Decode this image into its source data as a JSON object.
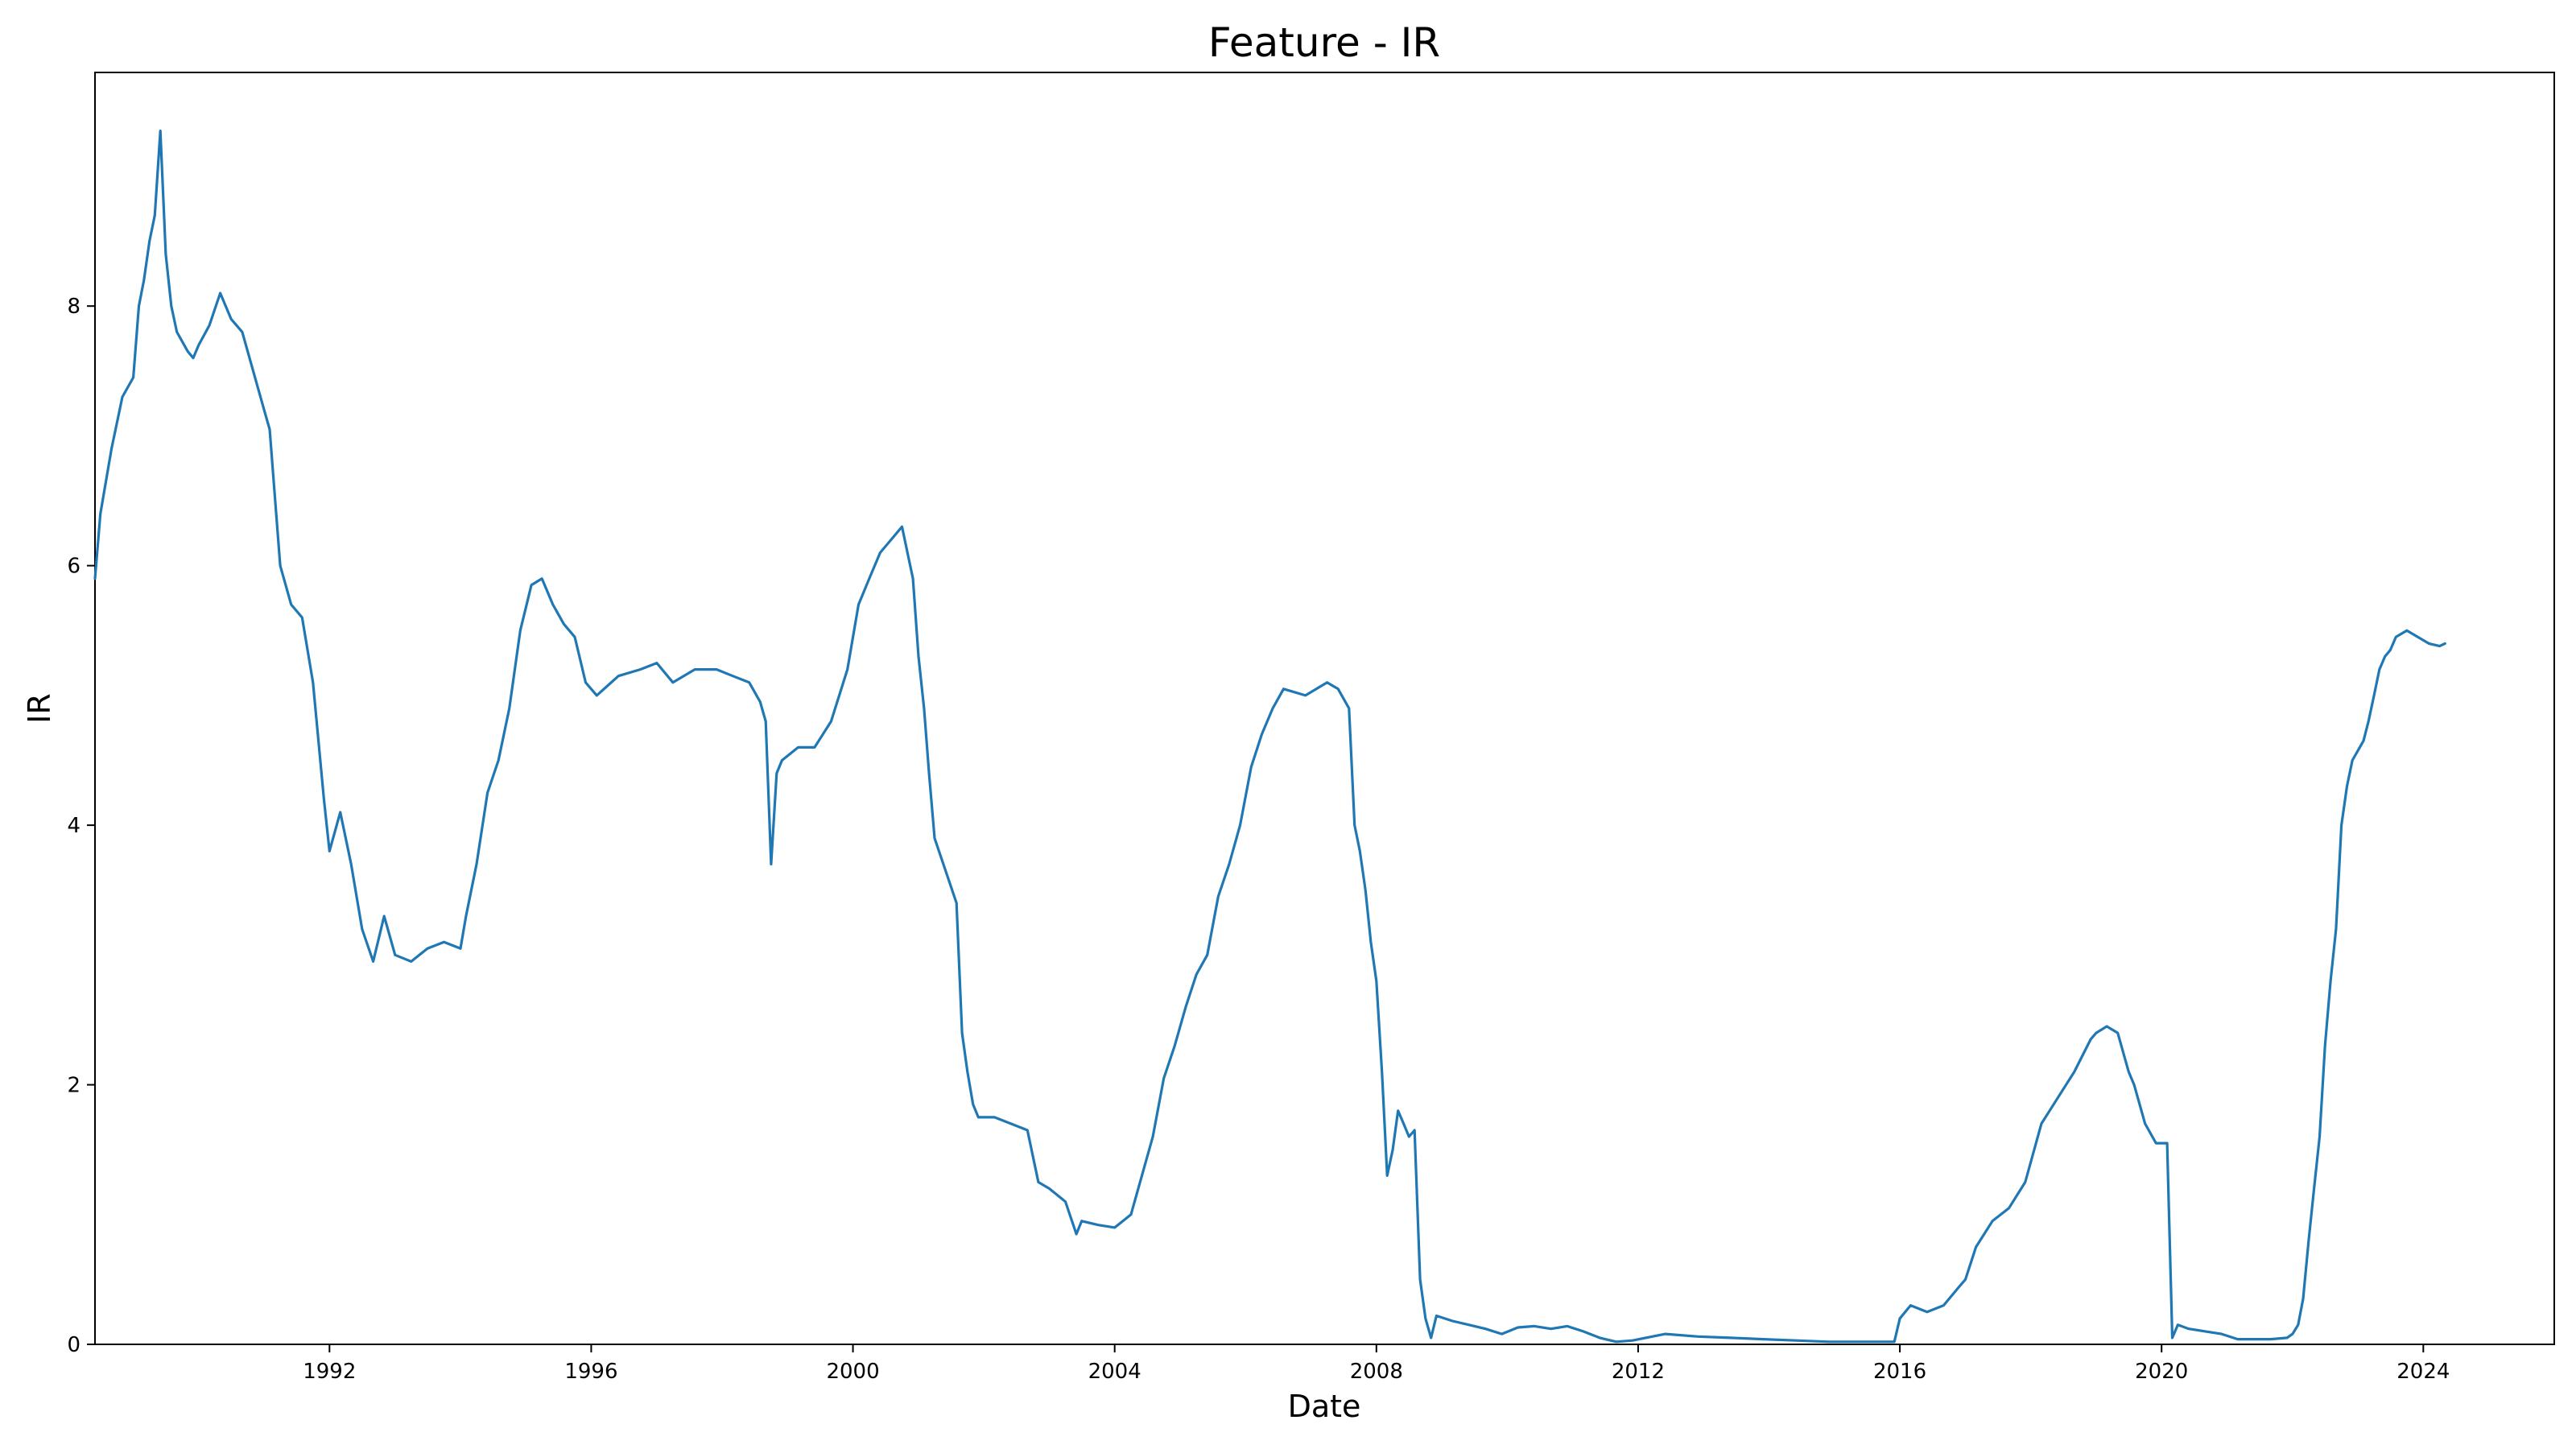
{
  "chart_data": {
    "type": "line",
    "title": "Feature - IR",
    "xlabel": "Date",
    "ylabel": "IR",
    "grid": false,
    "line_color": "#1f77b4",
    "xlim": [
      "1988-06-01",
      "2026-01-01"
    ],
    "ylim": [
      0,
      9.8
    ],
    "x_ticks": [
      {
        "date": "1992-01-01",
        "label": "1992"
      },
      {
        "date": "1996-01-01",
        "label": "1996"
      },
      {
        "date": "2000-01-01",
        "label": "2000"
      },
      {
        "date": "2004-01-01",
        "label": "2004"
      },
      {
        "date": "2008-01-01",
        "label": "2008"
      },
      {
        "date": "2012-01-01",
        "label": "2012"
      },
      {
        "date": "2016-01-01",
        "label": "2016"
      },
      {
        "date": "2020-01-01",
        "label": "2020"
      },
      {
        "date": "2024-01-01",
        "label": "2024"
      }
    ],
    "y_ticks": [
      {
        "value": 0,
        "label": "0"
      },
      {
        "value": 2,
        "label": "2"
      },
      {
        "value": 4,
        "label": "4"
      },
      {
        "value": 6,
        "label": "6"
      },
      {
        "value": 8,
        "label": "8"
      }
    ],
    "series": [
      {
        "x": [
          "1988-06-01",
          "1988-07-01",
          "1988-09-01",
          "1988-11-01",
          "1989-01-01",
          "1989-02-01",
          "1989-03-01",
          "1989-04-01",
          "1989-05-01",
          "1989-06-01",
          "1989-07-01",
          "1989-08-01",
          "1989-09-01",
          "1989-11-01",
          "1989-12-01",
          "1990-01-01",
          "1990-03-01",
          "1990-05-01",
          "1990-07-01",
          "1990-09-01",
          "1990-11-01",
          "1991-01-01",
          "1991-02-01",
          "1991-04-01",
          "1991-06-01",
          "1991-08-01",
          "1991-10-01",
          "1991-12-01",
          "1992-01-01",
          "1992-03-01",
          "1992-05-01",
          "1992-07-01",
          "1992-09-01",
          "1992-11-01",
          "1993-01-01",
          "1993-04-01",
          "1993-07-01",
          "1993-10-01",
          "1994-01-01",
          "1994-02-01",
          "1994-04-01",
          "1994-06-01",
          "1994-08-01",
          "1994-10-01",
          "1994-12-01",
          "1995-02-01",
          "1995-04-01",
          "1995-06-01",
          "1995-08-01",
          "1995-10-01",
          "1995-12-01",
          "1996-02-01",
          "1996-06-01",
          "1996-10-01",
          "1997-01-01",
          "1997-04-01",
          "1997-08-01",
          "1997-12-01",
          "1998-03-01",
          "1998-06-01",
          "1998-08-01",
          "1998-09-01",
          "1998-10-01",
          "1998-11-01",
          "1998-12-01",
          "1999-03-01",
          "1999-06-01",
          "1999-09-01",
          "1999-12-01",
          "2000-02-01",
          "2000-04-01",
          "2000-06-01",
          "2000-08-01",
          "2000-10-01",
          "2000-12-01",
          "2001-01-01",
          "2001-02-01",
          "2001-03-01",
          "2001-04-01",
          "2001-06-01",
          "2001-08-01",
          "2001-09-01",
          "2001-10-01",
          "2001-11-01",
          "2001-12-01",
          "2002-03-01",
          "2002-06-01",
          "2002-09-01",
          "2002-11-01",
          "2003-01-01",
          "2003-04-01",
          "2003-06-01",
          "2003-07-01",
          "2003-10-01",
          "2004-01-01",
          "2004-04-01",
          "2004-06-01",
          "2004-08-01",
          "2004-10-01",
          "2004-12-01",
          "2005-02-01",
          "2005-04-01",
          "2005-06-01",
          "2005-08-01",
          "2005-10-01",
          "2005-12-01",
          "2006-02-01",
          "2006-04-01",
          "2006-06-01",
          "2006-08-01",
          "2006-12-01",
          "2007-04-01",
          "2007-06-01",
          "2007-08-01",
          "2007-09-01",
          "2007-10-01",
          "2007-11-01",
          "2007-12-01",
          "2008-01-01",
          "2008-02-01",
          "2008-03-01",
          "2008-04-01",
          "2008-05-01",
          "2008-06-01",
          "2008-07-01",
          "2008-08-01",
          "2008-09-01",
          "2008-10-01",
          "2008-11-01",
          "2008-12-01",
          "2009-03-01",
          "2009-06-01",
          "2009-09-01",
          "2009-12-01",
          "2010-03-01",
          "2010-06-01",
          "2010-09-01",
          "2010-12-01",
          "2011-03-01",
          "2011-06-01",
          "2011-09-01",
          "2011-12-01",
          "2012-06-01",
          "2012-12-01",
          "2013-06-01",
          "2013-12-01",
          "2014-06-01",
          "2014-12-01",
          "2015-06-01",
          "2015-12-01",
          "2016-01-01",
          "2016-03-01",
          "2016-06-01",
          "2016-09-01",
          "2016-12-01",
          "2017-01-01",
          "2017-03-01",
          "2017-06-01",
          "2017-09-01",
          "2017-12-01",
          "2018-03-01",
          "2018-06-01",
          "2018-09-01",
          "2018-12-01",
          "2019-01-01",
          "2019-03-01",
          "2019-05-01",
          "2019-07-01",
          "2019-08-01",
          "2019-10-01",
          "2019-12-01",
          "2020-01-01",
          "2020-02-01",
          "2020-03-01",
          "2020-04-01",
          "2020-06-01",
          "2020-09-01",
          "2020-12-01",
          "2021-03-01",
          "2021-06-01",
          "2021-09-01",
          "2021-12-01",
          "2022-01-01",
          "2022-02-01",
          "2022-03-01",
          "2022-04-01",
          "2022-05-01",
          "2022-06-01",
          "2022-07-01",
          "2022-08-01",
          "2022-09-01",
          "2022-10-01",
          "2022-11-01",
          "2022-12-01",
          "2023-02-01",
          "2023-03-01",
          "2023-04-01",
          "2023-05-01",
          "2023-06-01",
          "2023-07-01",
          "2023-08-01",
          "2023-10-01",
          "2023-12-01",
          "2024-02-01",
          "2024-04-01",
          "2024-05-01"
        ],
        "y": [
          5.9,
          6.4,
          6.9,
          7.3,
          7.45,
          8.0,
          8.2,
          8.5,
          8.7,
          9.35,
          8.4,
          8.0,
          7.8,
          7.65,
          7.6,
          7.7,
          7.85,
          8.1,
          7.9,
          7.8,
          7.5,
          7.2,
          7.05,
          6.0,
          5.7,
          5.6,
          5.1,
          4.2,
          3.8,
          4.1,
          3.7,
          3.2,
          2.95,
          3.3,
          3.0,
          2.95,
          3.05,
          3.1,
          3.05,
          3.3,
          3.7,
          4.25,
          4.5,
          4.9,
          5.5,
          5.85,
          5.9,
          5.7,
          5.55,
          5.45,
          5.1,
          5.0,
          5.15,
          5.2,
          5.25,
          5.1,
          5.2,
          5.2,
          5.15,
          5.1,
          4.95,
          4.8,
          3.7,
          4.4,
          4.5,
          4.6,
          4.6,
          4.8,
          5.2,
          5.7,
          5.9,
          6.1,
          6.2,
          6.3,
          5.9,
          5.3,
          4.9,
          4.4,
          3.9,
          3.65,
          3.4,
          2.4,
          2.1,
          1.85,
          1.75,
          1.75,
          1.7,
          1.65,
          1.25,
          1.2,
          1.1,
          0.85,
          0.95,
          0.92,
          0.9,
          1.0,
          1.3,
          1.6,
          2.05,
          2.3,
          2.6,
          2.85,
          3.0,
          3.45,
          3.7,
          4.0,
          4.45,
          4.7,
          4.9,
          5.05,
          5.0,
          5.1,
          5.05,
          4.9,
          4.0,
          3.8,
          3.5,
          3.1,
          2.8,
          2.1,
          1.3,
          1.5,
          1.8,
          1.7,
          1.6,
          1.65,
          0.5,
          0.2,
          0.05,
          0.22,
          0.18,
          0.15,
          0.12,
          0.08,
          0.13,
          0.14,
          0.12,
          0.14,
          0.1,
          0.05,
          0.02,
          0.03,
          0.08,
          0.06,
          0.05,
          0.04,
          0.03,
          0.02,
          0.02,
          0.02,
          0.2,
          0.3,
          0.25,
          0.3,
          0.45,
          0.5,
          0.75,
          0.95,
          1.05,
          1.25,
          1.7,
          1.9,
          2.1,
          2.35,
          2.4,
          2.45,
          2.4,
          2.1,
          2.0,
          1.7,
          1.55,
          1.55,
          1.55,
          0.05,
          0.15,
          0.12,
          0.1,
          0.08,
          0.04,
          0.04,
          0.04,
          0.05,
          0.08,
          0.15,
          0.35,
          0.8,
          1.2,
          1.6,
          2.3,
          2.8,
          3.2,
          4.0,
          4.3,
          4.5,
          4.65,
          4.8,
          5.0,
          5.2,
          5.3,
          5.35,
          5.45,
          5.5,
          5.45,
          5.4,
          5.38,
          5.4
        ]
      }
    ]
  }
}
